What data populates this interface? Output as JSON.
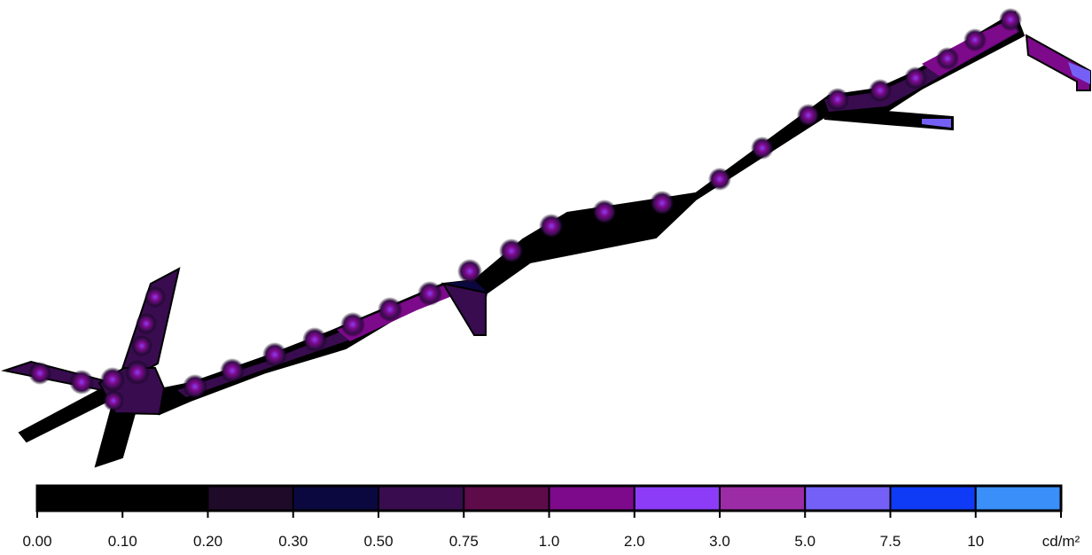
{
  "legend": {
    "unit": "cd/m²",
    "bands": [
      {
        "from": "0.00",
        "to": "0.10",
        "color": "#000000"
      },
      {
        "from": "0.10",
        "to": "0.20",
        "color": "#000000"
      },
      {
        "from": "0.20",
        "to": "0.30",
        "color": "#1f0a2a"
      },
      {
        "from": "0.30",
        "to": "0.50",
        "color": "#0b0840"
      },
      {
        "from": "0.50",
        "to": "0.75",
        "color": "#380c4e"
      },
      {
        "from": "0.75",
        "to": "1.0",
        "color": "#5e0b4a"
      },
      {
        "from": "1.0",
        "to": "2.0",
        "color": "#7c0a8a"
      },
      {
        "from": "2.0",
        "to": "3.0",
        "color": "#8c3cf6"
      },
      {
        "from": "3.0",
        "to": "5.0",
        "color": "#9b2ca6"
      },
      {
        "from": "5.0",
        "to": "7.5",
        "color": "#7560f7"
      },
      {
        "from": "7.5",
        "to": "10",
        "color": "#0f3bf6"
      },
      {
        "from": "10",
        "to": "",
        "color": "#3a8ff8"
      }
    ],
    "tick_labels": [
      "0.00",
      "0.10",
      "0.20",
      "0.30",
      "0.50",
      "0.75",
      "1.0",
      "2.0",
      "3.0",
      "5.0",
      "7.5",
      "10"
    ]
  }
}
